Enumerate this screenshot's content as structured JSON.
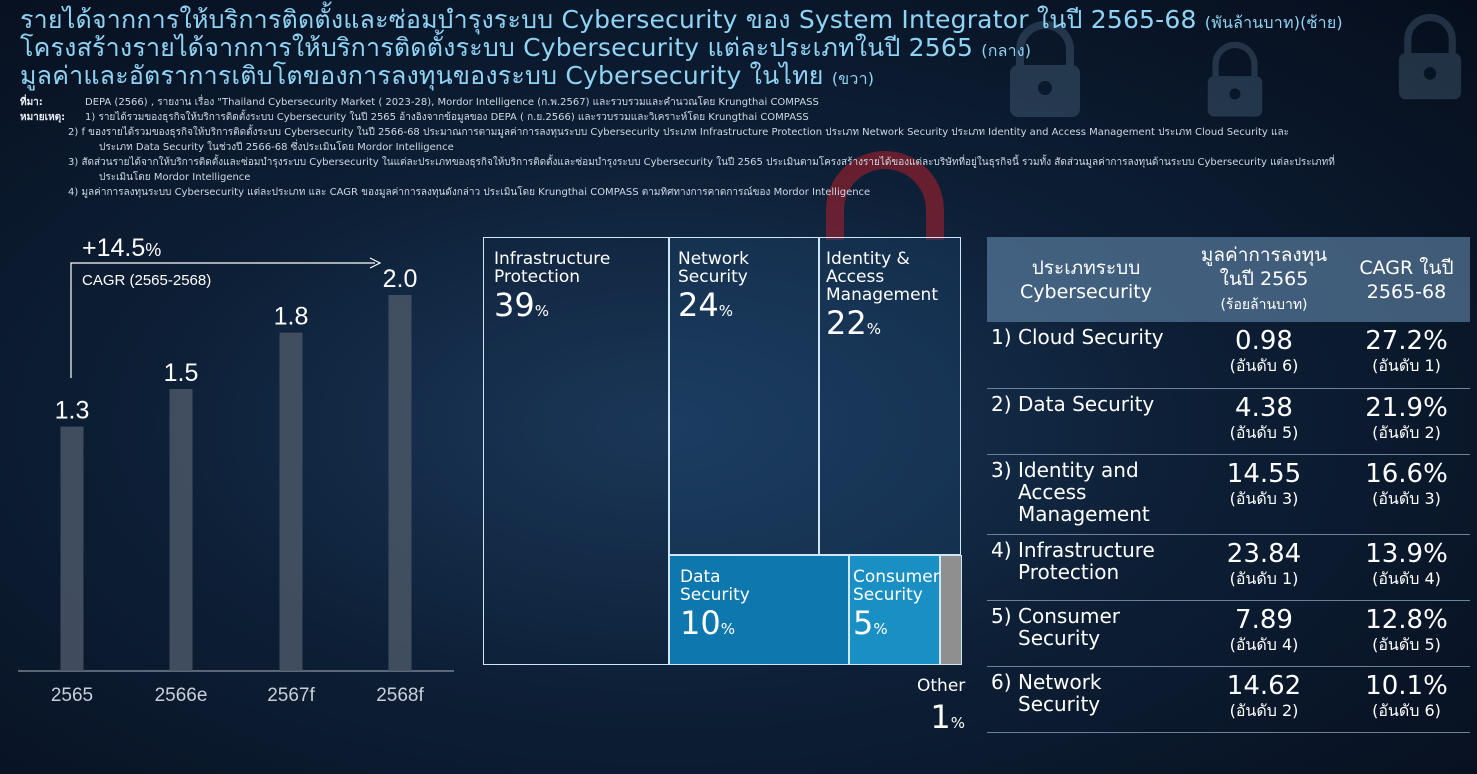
{
  "titles": {
    "line1": "รายได้จากการให้บริการติดตั้งและซ่อมบำรุงระบบ Cybersecurity ของ System Integrator ในปี 2565-68",
    "line1_sub": "(พันล้านบาท)(ซ้าย)",
    "line2": "โครงสร้างรายได้จากการให้บริการติดตั้งระบบ Cybersecurity แต่ละประเภทในปี 2565",
    "line2_sub": "(กลาง)",
    "line3": "มูลค่าและอัตราการเติบโตของการลงทุนของระบบ Cybersecurity ในไทย",
    "line3_sub": "(ขวา)"
  },
  "notes": {
    "source_label": "ที่มา:",
    "source_text": "DEPA (2566) , รายงาน เรื่อง \"Thailand Cybersecurity Market ( 2023-28), Mordor Intelligence (ก.พ.2567) และรวบรวมและคำนวณโดย Krungthai COMPASS",
    "remark_label": "หมายเหตุ:",
    "remark_1": "1) รายได้รวมของธุรกิจให้บริการติดตั้งระบบ Cybersecurity ในปี 2565 อ้างอิงจากข้อมูลของ DEPA ( ก.ย.2566) และรวบรวมและวิเคราะห์โดย Krungthai COMPASS",
    "remark_2a": "2) f ของรายได้รวมของธุรกิจให้บริการติดตั้งระบบ Cybersecurity ในปี 2566-68 ประมาณการตามมูลค่าการลงทุนระบบ Cybersecurity ประเภท Infrastructure Protection ประเภท Network Security ประเภท Identity and Access Management ประเภท Cloud Security และ",
    "remark_2b": "ประเภท Data Security ในช่วงปี 2566-68 ซึ่งประเมินโดย Mordor Intelligence",
    "remark_3a": "3) สัดส่วนรายได้จากให้บริการติดตั้งและซ่อมบำรุงระบบ Cybersecurity ในแต่ละประเภทของธุรกิจให้บริการติดตั้งและซ่อมบำรุงระบบ Cybersecurity ในปี 2565 ประเมินตามโครงสร้างรายได้ของแต่ละบริษัทที่อยู่ในธุรกิจนี้ รวมทั้ง สัดส่วนมูลค่าการลงทุนด้านระบบ Cybersecurity แต่ละประเภทที่",
    "remark_3b": "ประเมินโดย Mordor Intelligence",
    "remark_4": "4) มูลค่าการลงทุนระบบ Cybersecurity แต่ละประเภท และ CAGR ของมูลค่าการลงทุนดังกล่าว ประเมินโดย Krungthai COMPASS ตามทิศทางการคาดการณ์ของ Mordor Intelligence"
  },
  "chart_data": [
    {
      "type": "bar",
      "categories": [
        "2565",
        "2566e",
        "2567f",
        "2568f"
      ],
      "values": [
        1.3,
        1.5,
        1.8,
        2.0
      ],
      "data_labels": [
        "1.3",
        "1.5",
        "1.8",
        "2.0"
      ],
      "annotation_value": "+14.5",
      "annotation_unit": "%",
      "annotation_label": "CAGR (2565-2568)",
      "bar_color": "#4a5666",
      "ylim": [
        0,
        2.0
      ]
    },
    {
      "type": "treemap",
      "items": [
        {
          "name": "Infrastructure Protection",
          "value": 39
        },
        {
          "name": "Network Security",
          "value": 24
        },
        {
          "name": "Identity & Access Management",
          "value": 22
        },
        {
          "name": "Data Security",
          "value": 10
        },
        {
          "name": "Consumer Security",
          "value": 5
        },
        {
          "name": "Other",
          "value": 1
        }
      ],
      "pct_unit": "%"
    },
    {
      "type": "table",
      "headers": [
        "ประเภทระบบ Cybersecurity",
        "มูลค่าการลงทุน ในปี 2565",
        "(ร้อยล้านบาท)",
        "CAGR ในปี 2565-68"
      ],
      "rows": [
        {
          "num": "1)",
          "type": "Cloud Security",
          "value": "0.98",
          "value_rank": "(อันดับ 6)",
          "cagr": "27.2%",
          "cagr_rank": "(อันดับ 1)"
        },
        {
          "num": "2)",
          "type": "Data Security",
          "value": "4.38",
          "value_rank": "(อันดับ 5)",
          "cagr": "21.9%",
          "cagr_rank": "(อันดับ 2)"
        },
        {
          "num": "3)",
          "type": "Identity and Access Management",
          "value": "14.55",
          "value_rank": "(อันดับ 3)",
          "cagr": "16.6%",
          "cagr_rank": "(อันดับ 3)"
        },
        {
          "num": "4)",
          "type": "Infrastructure Protection",
          "value": "23.84",
          "value_rank": "(อันดับ 1)",
          "cagr": "13.9%",
          "cagr_rank": "(อันดับ 4)"
        },
        {
          "num": "5)",
          "type": "Consumer Security",
          "value": "7.89",
          "value_rank": "(อันดับ 4)",
          "cagr": "12.8%",
          "cagr_rank": "(อันดับ 5)"
        },
        {
          "num": "6)",
          "type": "Network Security",
          "value": "14.62",
          "value_rank": "(อันดับ 2)",
          "cagr": "10.1%",
          "cagr_rank": "(อันดับ 6)"
        }
      ]
    }
  ],
  "colors": {
    "title": "#8fd3f5",
    "treemap_infra": "rgba(20,40,70,0.15)",
    "treemap_network": "rgba(30,70,110,0.35)",
    "treemap_identity": "rgba(30,70,110,0.35)",
    "treemap_data": "#0e77ad",
    "treemap_consumer": "#1a8fc4",
    "treemap_other": "#8f8f8f",
    "table_header": "#6e96b9"
  }
}
